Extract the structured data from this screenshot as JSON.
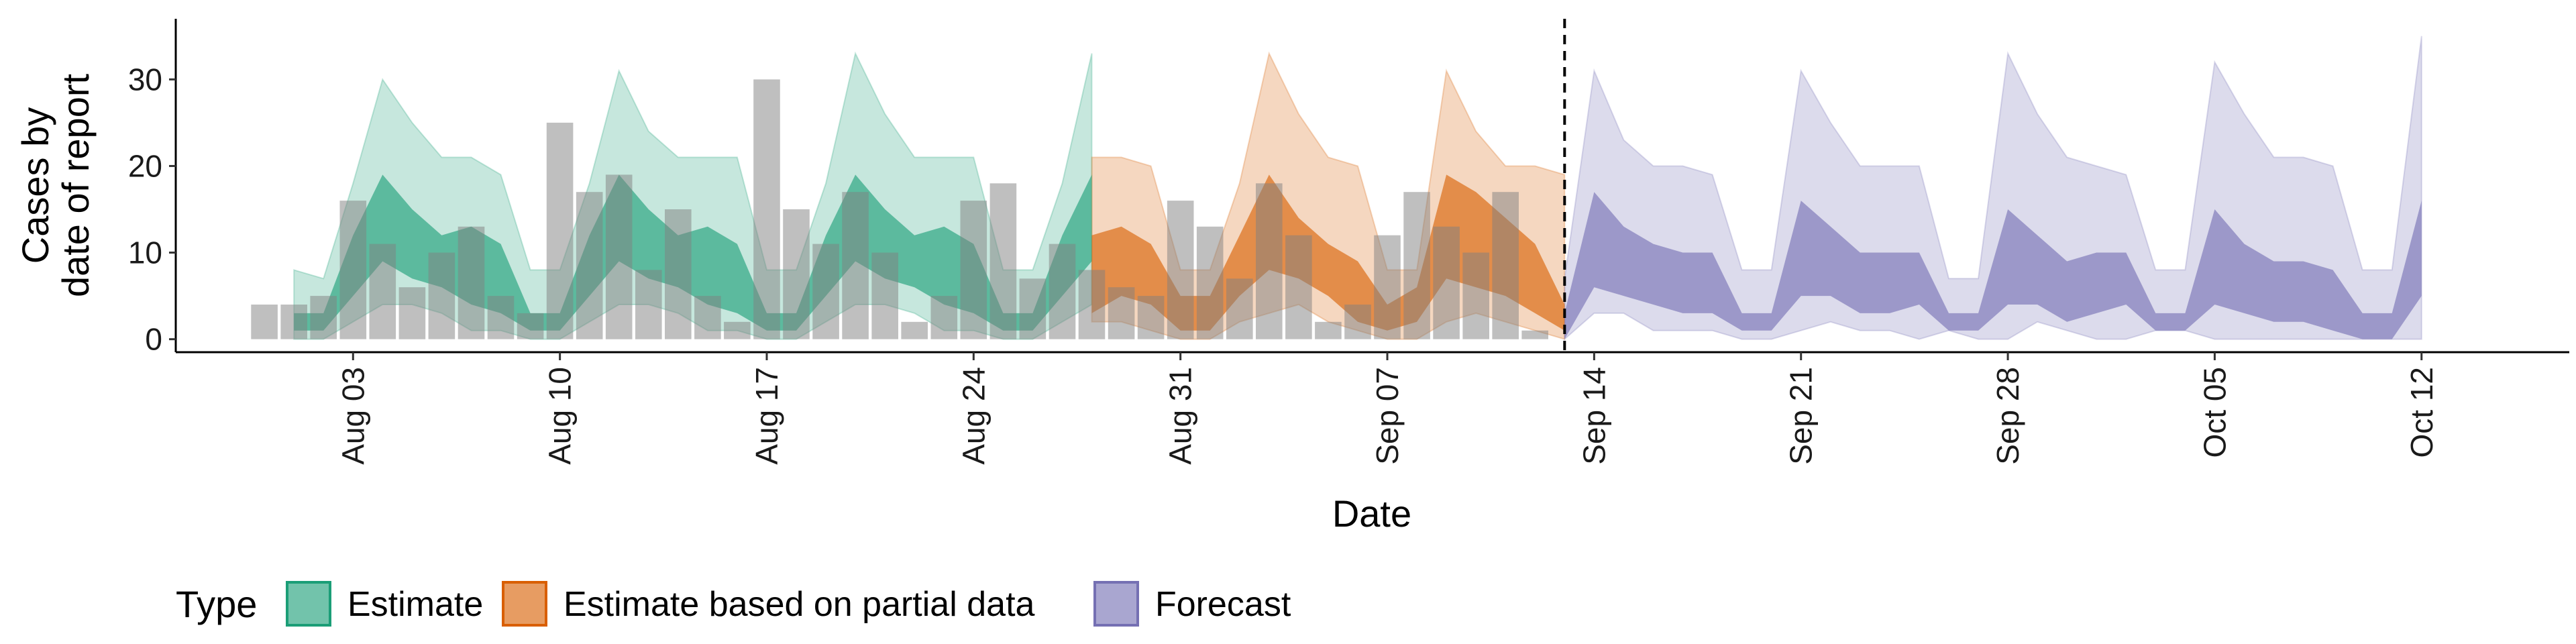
{
  "chart_data": {
    "type": "area",
    "xlabel": "Date",
    "ylabel_lines": [
      "Cases by",
      "date of report"
    ],
    "yticks": [
      0,
      10,
      20,
      30
    ],
    "ylim": [
      -1.5,
      37
    ],
    "xlim": [
      "2020-07-28",
      "2020-10-17"
    ],
    "x_ticks": [
      {
        "date": "2020-08-03",
        "label": "Aug 03"
      },
      {
        "date": "2020-08-10",
        "label": "Aug 10"
      },
      {
        "date": "2020-08-17",
        "label": "Aug 17"
      },
      {
        "date": "2020-08-24",
        "label": "Aug 24"
      },
      {
        "date": "2020-08-31",
        "label": "Aug 31"
      },
      {
        "date": "2020-09-07",
        "label": "Sep 07"
      },
      {
        "date": "2020-09-14",
        "label": "Sep 14"
      },
      {
        "date": "2020-09-21",
        "label": "Sep 21"
      },
      {
        "date": "2020-09-28",
        "label": "Sep 28"
      },
      {
        "date": "2020-10-05",
        "label": "Oct 05"
      },
      {
        "date": "2020-10-12",
        "label": "Oct 12"
      }
    ],
    "forecast_start_line": "2020-09-13",
    "observed_cases": {
      "start_date": "2020-07-31",
      "values": [
        4,
        4,
        5,
        16,
        11,
        6,
        10,
        13,
        5,
        3,
        25,
        17,
        19,
        8,
        15,
        5,
        2,
        30,
        15,
        11,
        17,
        10,
        2,
        5,
        16,
        18,
        7,
        11,
        8,
        6,
        5,
        16,
        13,
        7,
        18,
        12,
        2,
        4,
        12,
        17,
        13,
        10,
        17,
        1
      ]
    },
    "legend": {
      "title": "Type",
      "position": "bottom-left",
      "items": [
        {
          "label": "Estimate",
          "key": "estimate"
        },
        {
          "label": "Estimate based on partial data",
          "key": "partial"
        },
        {
          "label": "Forecast",
          "key": "forecast"
        }
      ]
    },
    "series": [
      {
        "key": "estimate",
        "start_date": "2020-08-01",
        "lower90": [
          0,
          0,
          2,
          4,
          4,
          3,
          1,
          1,
          0,
          0,
          2,
          4,
          4,
          3,
          1,
          1,
          0,
          0,
          2,
          4,
          4,
          3,
          1,
          1,
          0,
          0,
          2,
          4
        ],
        "lower50": [
          1,
          1,
          5,
          9,
          7,
          6,
          4,
          3,
          1,
          1,
          5,
          9,
          7,
          6,
          4,
          3,
          1,
          1,
          5,
          9,
          7,
          6,
          4,
          3,
          1,
          1,
          5,
          9
        ],
        "upper50": [
          3,
          3,
          12,
          19,
          15,
          12,
          13,
          11,
          3,
          3,
          12,
          19,
          15,
          12,
          13,
          11,
          3,
          3,
          12,
          19,
          15,
          12,
          13,
          11,
          3,
          3,
          12,
          19
        ],
        "upper90": [
          8,
          7,
          18,
          30,
          25,
          21,
          21,
          19,
          8,
          8,
          18,
          31,
          24,
          21,
          21,
          21,
          8,
          8,
          18,
          33,
          26,
          21,
          21,
          21,
          8,
          8,
          18,
          33
        ]
      },
      {
        "key": "partial",
        "start_date": "2020-08-28",
        "lower90": [
          2,
          2,
          1,
          0,
          0,
          2,
          3,
          4,
          2,
          1,
          0,
          0,
          2,
          3,
          2,
          1,
          0
        ],
        "lower50": [
          3,
          5,
          4,
          1,
          1,
          5,
          8,
          7,
          5,
          2,
          1,
          2,
          7,
          6,
          5,
          3,
          1
        ],
        "upper50": [
          12,
          13,
          11,
          5,
          5,
          12,
          19,
          14,
          11,
          9,
          4,
          6,
          19,
          17,
          14,
          11,
          4
        ],
        "upper90": [
          21,
          21,
          20,
          8,
          8,
          18,
          33,
          26,
          21,
          20,
          8,
          8,
          31,
          24,
          20,
          20,
          19
        ]
      },
      {
        "key": "forecast",
        "start_date": "2020-09-13",
        "lower90": [
          0,
          3,
          3,
          1,
          1,
          1,
          0,
          0,
          1,
          2,
          1,
          1,
          0,
          1,
          0,
          0,
          2,
          1,
          0,
          0,
          1,
          1,
          0,
          0,
          0,
          0,
          0,
          0,
          0,
          0
        ],
        "lower50": [
          0,
          6,
          5,
          4,
          3,
          3,
          1,
          1,
          5,
          5,
          3,
          3,
          4,
          1,
          1,
          4,
          4,
          2,
          3,
          4,
          1,
          1,
          4,
          3,
          2,
          2,
          1,
          0,
          0,
          5
        ],
        "upper50": [
          3,
          17,
          13,
          11,
          10,
          10,
          3,
          3,
          16,
          13,
          10,
          10,
          10,
          3,
          3,
          15,
          12,
          9,
          10,
          10,
          3,
          3,
          15,
          11,
          9,
          9,
          8,
          3,
          3,
          16
        ],
        "upper90": [
          7,
          31,
          23,
          20,
          20,
          19,
          8,
          8,
          31,
          25,
          20,
          20,
          20,
          7,
          7,
          33,
          26,
          21,
          20,
          19,
          8,
          8,
          32,
          26,
          21,
          21,
          20,
          8,
          8,
          35
        ]
      }
    ],
    "colors": {
      "estimate": "#1b9e77",
      "partial": "#d95f02",
      "forecast": "#7570b3",
      "observed": "#7f7f7f"
    }
  }
}
